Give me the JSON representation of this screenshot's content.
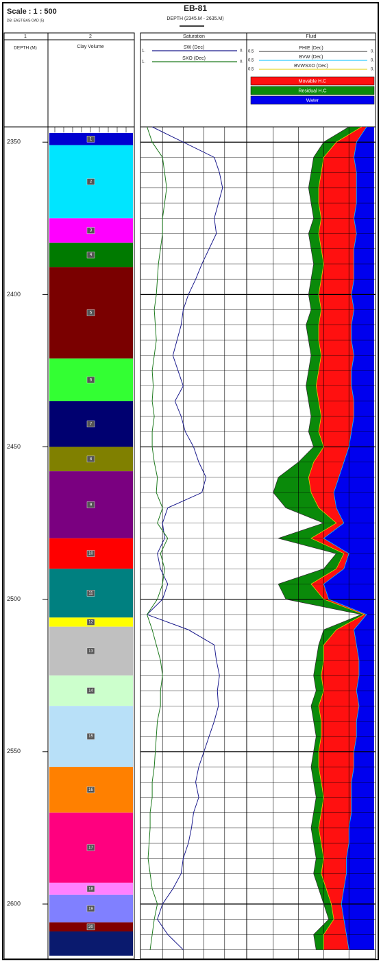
{
  "chart_data": {
    "type": "well_log",
    "scale": "Scale : 1 : 500",
    "database": "DB: EAST-BAS-OAD (5)",
    "title": "EB-81",
    "subtitle": "DEPTH (2345.M - 2635.M)",
    "depth_track_number": "1",
    "depth_label": "DEPTH (M)",
    "ylim": [
      2345,
      2618
    ],
    "yticks": [
      2350,
      2400,
      2450,
      2500,
      2550,
      2600
    ],
    "depth": [
      2345,
      2350,
      2355,
      2360,
      2365,
      2370,
      2375,
      2380,
      2385,
      2390,
      2395,
      2400,
      2405,
      2410,
      2415,
      2420,
      2425,
      2430,
      2435,
      2440,
      2445,
      2450,
      2455,
      2460,
      2465,
      2470,
      2475,
      2480,
      2485,
      2490,
      2495,
      2500,
      2505,
      2510,
      2515,
      2520,
      2525,
      2530,
      2535,
      2540,
      2545,
      2550,
      2555,
      2560,
      2565,
      2570,
      2575,
      2580,
      2585,
      2590,
      2595,
      2600,
      2605,
      2610,
      2615
    ],
    "zones": {
      "track_number": "2",
      "name": "Clay Volume",
      "labels": [
        "1",
        "2",
        "3",
        "4",
        "5",
        "6",
        "7",
        "8",
        "9",
        "10",
        "11",
        "12",
        "13",
        "14",
        "15",
        "16",
        "17",
        "18",
        "19",
        "20",
        null
      ],
      "tops": [
        2347,
        2351,
        2375,
        2383,
        2391,
        2421,
        2435,
        2450,
        2458,
        2480,
        2490,
        2506,
        2509,
        2525,
        2535,
        2555,
        2570,
        2593,
        2597,
        2606,
        2609
      ],
      "bottoms": [
        2351,
        2375,
        2383,
        2391,
        2421,
        2435,
        2450,
        2458,
        2480,
        2490,
        2506,
        2509,
        2525,
        2535,
        2555,
        2570,
        2593,
        2597,
        2606,
        2609,
        2617
      ],
      "colors": [
        "#0000d0",
        "#00e5ff",
        "#ff00ff",
        "#007a00",
        "#7a0000",
        "#33ff33",
        "#000070",
        "#808000",
        "#7a0080",
        "#ff0000",
        "#008080",
        "#ffff00",
        "#c0c0c0",
        "#ccffcc",
        "#b8e0f8",
        "#ff8000",
        "#ff007f",
        "#ff80ff",
        "#8080ff",
        "#800000",
        "#0a1a6e"
      ]
    },
    "saturation": {
      "title": "Saturation",
      "xlim": [
        1,
        0
      ],
      "xticks": [
        {
          "value": 1,
          "label": "1."
        },
        {
          "value": 0,
          "label": "0."
        }
      ],
      "series": [
        {
          "name": "SW (Dec)",
          "color": "#1a1a8c",
          "values": [
            0.9,
            0.6,
            0.3,
            0.25,
            0.22,
            0.26,
            0.3,
            0.28,
            0.35,
            0.42,
            0.48,
            0.55,
            0.6,
            0.62,
            0.66,
            0.7,
            0.65,
            0.6,
            0.68,
            0.62,
            0.58,
            0.5,
            0.45,
            0.38,
            0.42,
            0.75,
            0.8,
            0.78,
            0.85,
            0.82,
            0.75,
            0.8,
            0.95,
            0.55,
            0.3,
            0.28,
            0.25,
            0.27,
            0.26,
            0.3,
            0.35,
            0.4,
            0.45,
            0.48,
            0.45,
            0.5,
            0.52,
            0.55,
            0.6,
            0.62,
            0.7,
            0.8,
            0.85,
            0.75,
            0.6
          ]
        },
        {
          "name": "SXO (Dec)",
          "color": "#1e7a1e",
          "values": [
            0.95,
            0.9,
            0.8,
            0.78,
            0.76,
            0.78,
            0.8,
            0.8,
            0.82,
            0.84,
            0.85,
            0.86,
            0.88,
            0.87,
            0.86,
            0.88,
            0.9,
            0.89,
            0.9,
            0.88,
            0.9,
            0.9,
            0.88,
            0.85,
            0.86,
            0.8,
            0.85,
            0.75,
            0.82,
            0.78,
            0.8,
            0.85,
            0.95,
            0.9,
            0.86,
            0.82,
            0.8,
            0.82,
            0.82,
            0.85,
            0.86,
            0.87,
            0.88,
            0.9,
            0.9,
            0.92,
            0.92,
            0.93,
            0.94,
            0.92,
            0.9,
            0.85,
            0.88,
            0.9,
            0.92
          ]
        }
      ]
    },
    "fluid": {
      "title": "Fluid",
      "xlim": [
        0.5,
        0
      ],
      "xticks": [
        0.5,
        {
          "value": 0,
          "label": "0."
        }
      ],
      "curves": [
        {
          "name": "PHIE (Dec)",
          "color": "#333333",
          "fill_name": "Residual H.C",
          "fill_color": "#0a8a0a",
          "values": [
            0.1,
            0.2,
            0.24,
            0.25,
            0.26,
            0.25,
            0.24,
            0.26,
            0.25,
            0.24,
            0.25,
            0.26,
            0.25,
            0.27,
            0.26,
            0.25,
            0.26,
            0.27,
            0.26,
            0.25,
            0.26,
            0.24,
            0.3,
            0.38,
            0.4,
            0.35,
            0.2,
            0.38,
            0.15,
            0.2,
            0.38,
            0.35,
            0.05,
            0.2,
            0.22,
            0.23,
            0.24,
            0.23,
            0.25,
            0.24,
            0.23,
            0.24,
            0.25,
            0.24,
            0.23,
            0.24,
            0.25,
            0.24,
            0.23,
            0.24,
            0.22,
            0.2,
            0.18,
            0.24,
            0.23
          ]
        },
        {
          "name": "BVW (Dec)",
          "color": "#00bfff",
          "fill_name": "Water",
          "fill_color": "#0000ee",
          "values": [
            0.03,
            0.07,
            0.08,
            0.07,
            0.07,
            0.07,
            0.08,
            0.07,
            0.08,
            0.08,
            0.08,
            0.09,
            0.08,
            0.09,
            0.09,
            0.08,
            0.09,
            0.09,
            0.08,
            0.08,
            0.09,
            0.1,
            0.12,
            0.14,
            0.16,
            0.15,
            0.12,
            0.2,
            0.1,
            0.12,
            0.2,
            0.18,
            0.03,
            0.08,
            0.07,
            0.06,
            0.06,
            0.07,
            0.06,
            0.07,
            0.07,
            0.08,
            0.08,
            0.09,
            0.09,
            0.09,
            0.1,
            0.1,
            0.11,
            0.11,
            0.12,
            0.13,
            0.12,
            0.11,
            0.1
          ]
        },
        {
          "name": "BVWSXO (Dec)",
          "color": "#e0d000",
          "fill_name": "Movable H.C",
          "fill_color": "#ff1010",
          "values": [
            0.05,
            0.15,
            0.2,
            0.21,
            0.22,
            0.22,
            0.21,
            0.22,
            0.21,
            0.2,
            0.21,
            0.22,
            0.21,
            0.22,
            0.22,
            0.21,
            0.22,
            0.23,
            0.22,
            0.21,
            0.22,
            0.2,
            0.24,
            0.26,
            0.25,
            0.22,
            0.15,
            0.25,
            0.12,
            0.15,
            0.25,
            0.2,
            0.04,
            0.15,
            0.2,
            0.2,
            0.21,
            0.2,
            0.22,
            0.21,
            0.21,
            0.22,
            0.22,
            0.21,
            0.2,
            0.21,
            0.22,
            0.21,
            0.2,
            0.21,
            0.19,
            0.17,
            0.16,
            0.2,
            0.2
          ]
        }
      ]
    }
  }
}
